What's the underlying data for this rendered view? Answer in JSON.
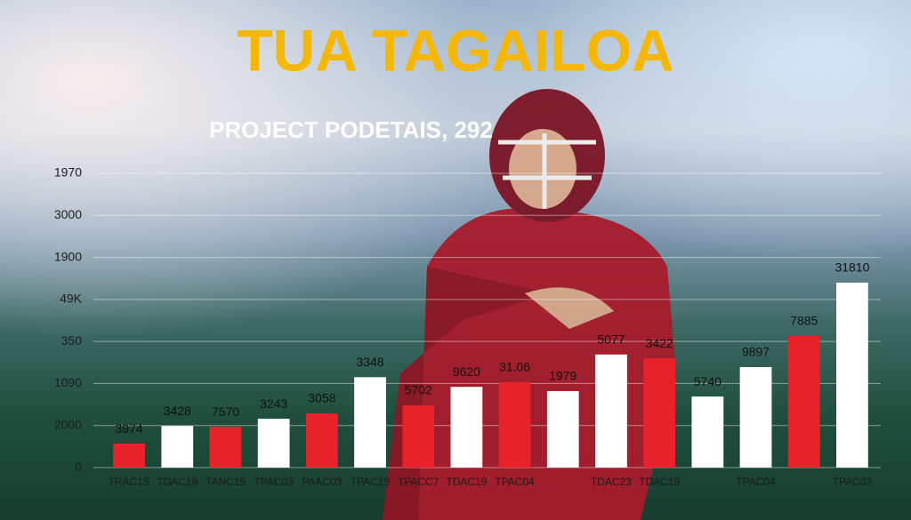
{
  "chart_data": {
    "type": "bar",
    "title": "TUA TAGAILOA",
    "subtitle": "PROJECT PODETAIS, 292",
    "categories": [
      "TRAC1S",
      "TDAC18",
      "TANC19",
      "TPAC03",
      "PAAC03",
      "TPAC19",
      "TPACC7",
      "TDAC19",
      "TPAC04",
      null,
      "TDAC23",
      "TDAC19",
      null,
      "TPAC04",
      null,
      "TPAC03"
    ],
    "values": [
      0.57,
      0.99,
      0.97,
      1.16,
      1.29,
      2.15,
      1.48,
      1.92,
      2.03,
      1.82,
      2.69,
      2.6,
      1.69,
      2.39,
      3.13,
      4.4
    ],
    "value_labels": [
      "3974",
      "3428",
      "7570",
      "3243",
      "3058",
      "3348",
      "5702",
      "9620",
      "31.06",
      "1979",
      "5077",
      "3422",
      "5740",
      "9897",
      "7885",
      "31810"
    ],
    "colors": [
      "#e8222a",
      "#ffffff",
      "#e8222a",
      "#ffffff",
      "#e8222a",
      "#ffffff",
      "#e8222a",
      "#ffffff",
      "#e8222a",
      "#ffffff",
      "#ffffff",
      "#e8222a",
      "#ffffff",
      "#ffffff",
      "#e8222a",
      "#ffffff"
    ],
    "ylim": [
      0,
      7
    ],
    "yticks": [
      {
        "value": 0,
        "label": "0"
      },
      {
        "value": 1,
        "label": "2000"
      },
      {
        "value": 2,
        "label": "1090"
      },
      {
        "value": 3,
        "label": "350"
      },
      {
        "value": 4,
        "label": "49K"
      },
      {
        "value": 5,
        "label": "1900"
      },
      {
        "value": 6,
        "label": "3000"
      },
      {
        "value": 7,
        "label": "1970"
      }
    ],
    "grid": true
  }
}
